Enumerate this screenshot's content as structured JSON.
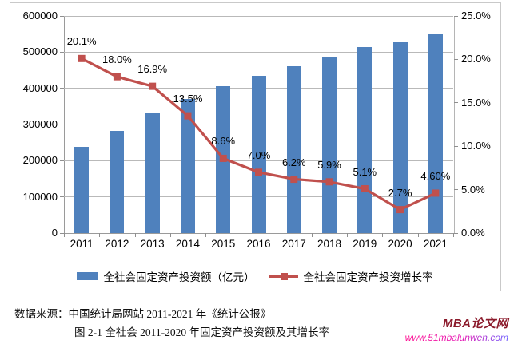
{
  "chart_data": {
    "type": "combo",
    "title": "",
    "categories": [
      "2011",
      "2012",
      "2013",
      "2014",
      "2015",
      "2016",
      "2017",
      "2018",
      "2019",
      "2020",
      "2021"
    ],
    "series": [
      {
        "name": "全社会固定资产投资额（亿元）",
        "type": "bar",
        "axis": "left",
        "color": "#4F81BD",
        "values": [
          239000,
          282000,
          330000,
          371000,
          406000,
          434000,
          461000,
          488000,
          514000,
          528000,
          552000
        ]
      },
      {
        "name": "全社会固定资产投资增长率",
        "type": "line",
        "axis": "right",
        "marker": "square",
        "color": "#C0504D",
        "values": [
          20.1,
          18.0,
          16.9,
          13.5,
          8.6,
          7.0,
          6.2,
          5.9,
          5.1,
          2.7,
          4.6
        ],
        "point_labels": [
          "20.1%",
          "18.0%",
          "16.9%",
          "13.5%",
          "8.6%",
          "7.0%",
          "6.2%",
          "5.9%",
          "5.1%",
          "2.7%",
          "4.60%"
        ]
      }
    ],
    "left_axis": {
      "min": 0,
      "max": 600000,
      "step": 100000,
      "tick_labels": [
        "0",
        "100000",
        "200000",
        "300000",
        "400000",
        "500000",
        "600000"
      ]
    },
    "right_axis": {
      "min": 0,
      "max": 25,
      "step": 5,
      "tick_labels": [
        "0.0%",
        "5.0%",
        "10.0%",
        "15.0%",
        "20.0%",
        "25.0%"
      ]
    },
    "gridlines": "horizontal",
    "legend_position": "bottom"
  },
  "captions": {
    "source": "数据来源：中国统计局网站 2011-2021 年《统计公报》",
    "figure": "图 2-1 全社会 2011-2020 年固定资产投资额及其增长率"
  },
  "watermark": {
    "title": "MBA论文网",
    "url": "www.51mbalunwen.com"
  }
}
